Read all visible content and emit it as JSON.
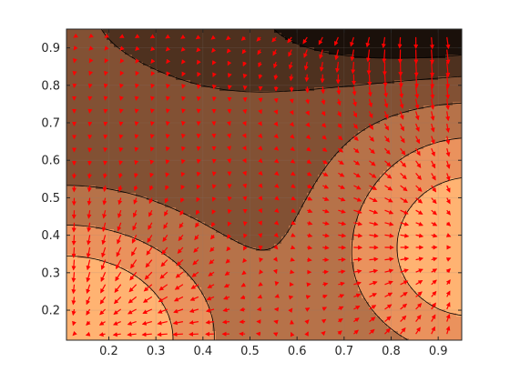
{
  "chart_data": {
    "type": "filled-contour-quiver",
    "title": "",
    "xlabel": "",
    "ylabel": "",
    "xlim": [
      0.11,
      0.95
    ],
    "ylim": [
      0.12,
      0.95
    ],
    "grid": true,
    "x_ticks": [
      0.2,
      0.3,
      0.4,
      0.5,
      0.6,
      0.7,
      0.8,
      0.9
    ],
    "y_ticks": [
      0.2,
      0.3,
      0.4,
      0.5,
      0.6,
      0.7,
      0.8,
      0.9
    ],
    "x_tick_labels": [
      "0.2",
      "0.3",
      "0.4",
      "0.5",
      "0.6",
      "0.7",
      "0.8",
      "0.9"
    ],
    "y_tick_labels": [
      "0.2",
      "0.3",
      "0.4",
      "0.5",
      "0.6",
      "0.7",
      "0.8",
      "0.9"
    ],
    "colormap": "copper",
    "contour_levels": [
      0.3,
      0.7,
      1.1,
      1.5,
      1.9
    ],
    "contour_line_color": "#000000",
    "arrow_color": "#ff0000",
    "grid_color": "#7f7f7f",
    "field": {
      "description": "scalar field f(x,y) = sum of gaussian bumps",
      "background": 0.72,
      "bumps": [
        {
          "x0": 0.11,
          "y0": 0.12,
          "amp": 1.9,
          "sx": 0.23,
          "sy": 0.23
        },
        {
          "x0": 0.97,
          "y0": 0.37,
          "amp": 1.55,
          "sx": 0.21,
          "sy": 0.25
        },
        {
          "x0": 0.87,
          "y0": 0.99,
          "amp": -1.05,
          "sx": 0.25,
          "sy": 0.11
        }
      ]
    },
    "quiver_step": 0.033
  }
}
